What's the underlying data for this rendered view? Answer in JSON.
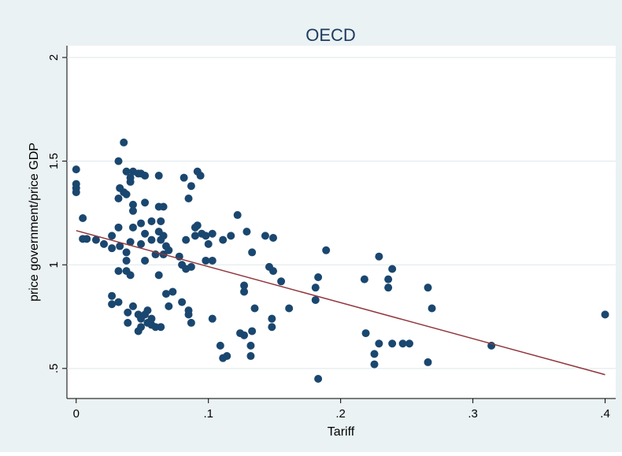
{
  "chart_data": {
    "type": "scatter",
    "title": "OECD",
    "xlabel": "Tariff",
    "ylabel": "price government/price GDP",
    "xlim": [
      -0.007,
      0.408
    ],
    "ylim": [
      0.355,
      2.057
    ],
    "xticks": [
      0,
      {
        "value": 0.1,
        "label": ".1"
      },
      {
        "value": 0.2,
        "label": ".2"
      },
      {
        "value": 0.3,
        "label": ".3"
      },
      {
        "value": 0.4,
        "label": ".4"
      }
    ],
    "yticks": [
      {
        "value": 0.5,
        "label": ".5"
      },
      1,
      1.5,
      2
    ],
    "grid": true,
    "series": [
      {
        "color": "#1a476f",
        "x": [
          0,
          0,
          0,
          0,
          0.005,
          0.005,
          0.008,
          0.015,
          0.021,
          0.027,
          0.027,
          0.027,
          0.027,
          0.032,
          0.032,
          0.032,
          0.032,
          0.032,
          0.033,
          0.033,
          0.036,
          0.036,
          0.038,
          0.038,
          0.038,
          0.038,
          0.038,
          0.039,
          0.039,
          0.041,
          0.041,
          0.041,
          0.041,
          0.043,
          0.043,
          0.043,
          0.043,
          0.043,
          0.047,
          0.047,
          0.047,
          0.049,
          0.049,
          0.049,
          0.049,
          0.049,
          0.052,
          0.052,
          0.052,
          0.052,
          0.052,
          0.054,
          0.054,
          0.057,
          0.057,
          0.057,
          0.057,
          0.06,
          0.06,
          0.0625,
          0.0625,
          0.0625,
          0.0625,
          0.064,
          0.064,
          0.064,
          0.066,
          0.066,
          0.066,
          0.068,
          0.068,
          0.07,
          0.07,
          0.073,
          0.078,
          0.08,
          0.08,
          0.0815,
          0.083,
          0.083,
          0.085,
          0.085,
          0.085,
          0.087,
          0.087,
          0.087,
          0.09,
          0.09,
          0.0917,
          0.0917,
          0.094,
          0.095,
          0.098,
          0.098,
          0.1,
          0.103,
          0.103,
          0.103,
          0.109,
          0.111,
          0.111,
          0.114,
          0.117,
          0.122,
          0.124,
          0.127,
          0.127,
          0.127,
          0.129,
          0.132,
          0.132,
          0.133,
          0.133,
          0.135,
          0.143,
          0.146,
          0.148,
          0.148,
          0.149,
          0.149,
          0.155,
          0.161,
          0.181,
          0.181,
          0.183,
          0.183,
          0.189,
          0.218,
          0.219,
          0.2255,
          0.2255,
          0.229,
          0.229,
          0.236,
          0.236,
          0.239,
          0.239,
          0.247,
          0.252,
          0.266,
          0.266,
          0.269,
          0.314,
          0.4
        ],
        "values": [
          1.46,
          1.39,
          1.37,
          1.35,
          1.225,
          1.125,
          1.125,
          1.12,
          1.1,
          1.14,
          1.08,
          0.85,
          0.81,
          1.5,
          1.32,
          1.18,
          0.97,
          0.82,
          1.37,
          1.09,
          1.59,
          1.35,
          1.45,
          1.34,
          1.06,
          0.97,
          1.02,
          0.77,
          0.72,
          1.42,
          1.4,
          1.11,
          0.95,
          1.45,
          1.29,
          1.26,
          1.18,
          0.8,
          1.44,
          0.76,
          0.68,
          1.44,
          1.2,
          1.1,
          0.74,
          0.7,
          1.43,
          1.3,
          1.15,
          1.02,
          0.76,
          0.78,
          0.72,
          1.21,
          1.12,
          0.74,
          0.71,
          1.05,
          0.7,
          1.43,
          1.28,
          1.16,
          0.95,
          1.21,
          1.12,
          0.7,
          1.28,
          1.14,
          1.05,
          1.09,
          0.86,
          1.07,
          0.8,
          0.87,
          1.04,
          0.82,
          1.0,
          1.42,
          1.12,
          0.98,
          1.32,
          0.78,
          0.76,
          1.38,
          0.99,
          0.72,
          1.18,
          1.14,
          1.45,
          1.19,
          1.43,
          1.15,
          1.14,
          1.02,
          1.1,
          1.15,
          0.74,
          1.02,
          0.61,
          1.12,
          0.55,
          0.56,
          1.14,
          1.24,
          0.67,
          0.87,
          0.66,
          0.9,
          1.16,
          0.61,
          0.56,
          1.06,
          0.68,
          0.79,
          1.14,
          0.99,
          0.74,
          0.7,
          1.13,
          0.97,
          0.92,
          0.79,
          0.89,
          0.83,
          0.94,
          0.45,
          1.07,
          0.93,
          0.67,
          0.57,
          0.52,
          1.04,
          0.62,
          0.93,
          0.89,
          0.98,
          0.62,
          0.62,
          0.62,
          0.89,
          0.53,
          0.79,
          0.61,
          0.76
        ]
      }
    ],
    "fit": {
      "color": "#90353b",
      "x": [
        0,
        0.4
      ],
      "values": [
        1.165,
        0.47
      ]
    }
  }
}
